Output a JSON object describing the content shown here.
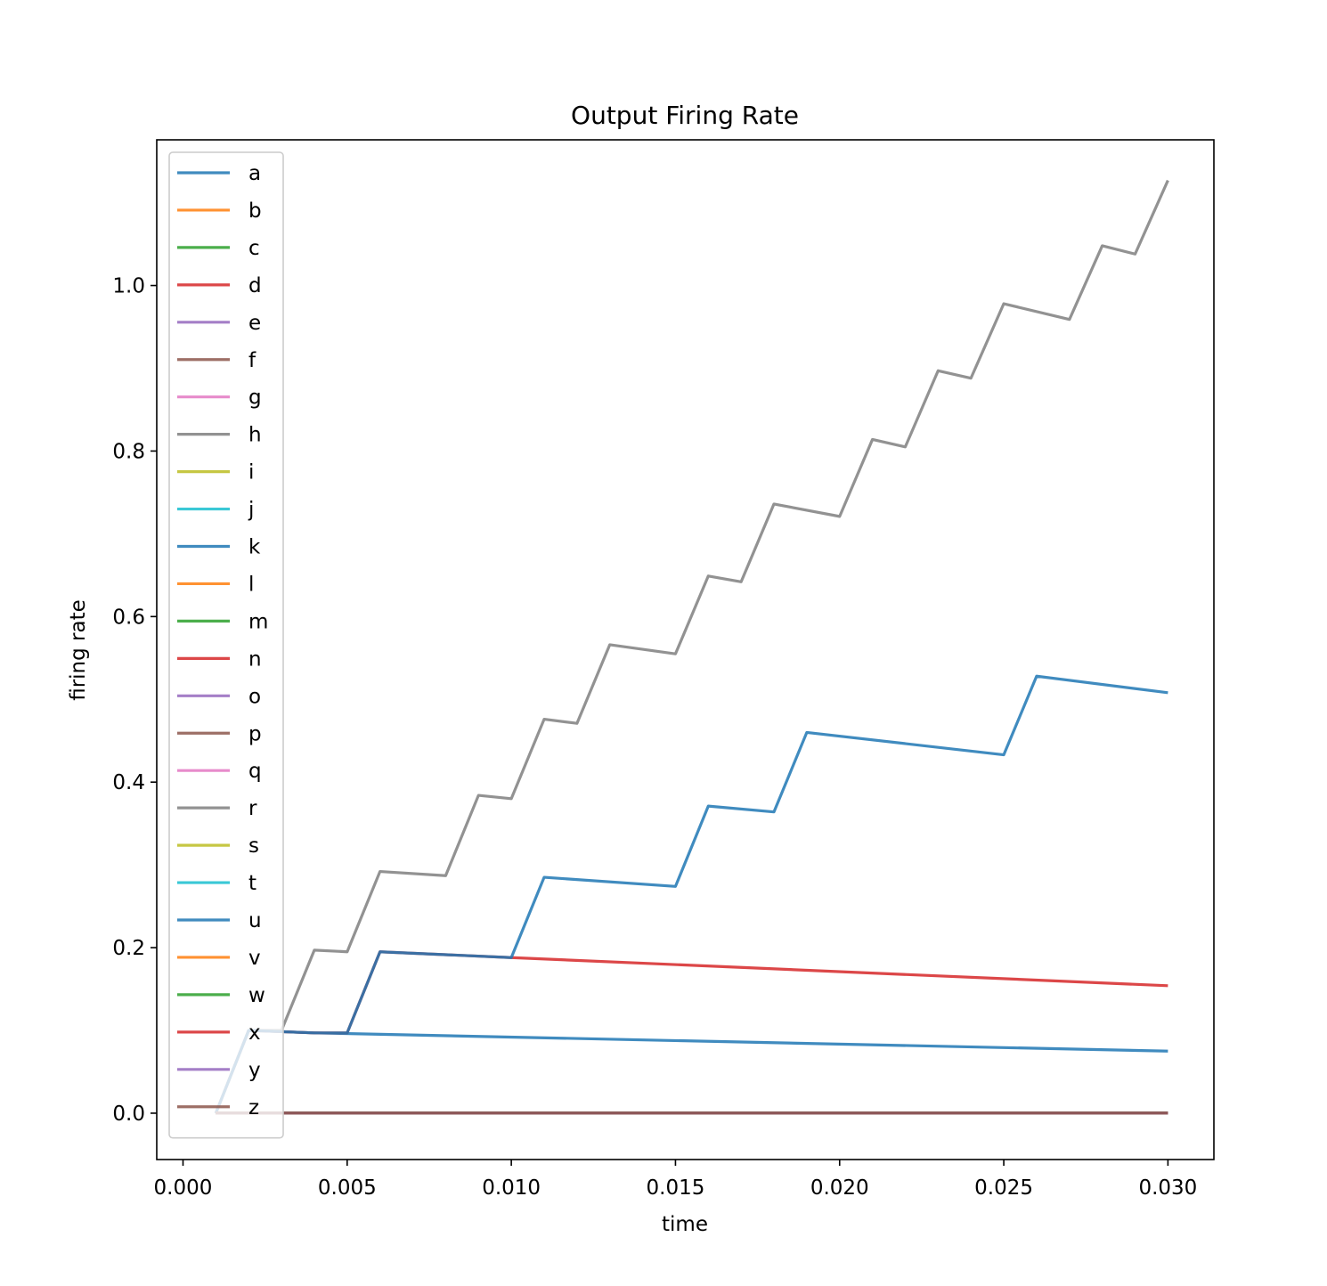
{
  "chart_data": {
    "type": "line",
    "title": "Output Firing Rate",
    "xlabel": "time",
    "ylabel": "firing rate",
    "xlim": [
      -0.0008,
      0.0314
    ],
    "ylim": [
      -0.056,
      1.176
    ],
    "xticks": [
      0.0,
      0.005,
      0.01,
      0.015,
      0.02,
      0.025,
      0.03
    ],
    "xtick_labels": [
      "0.000",
      "0.005",
      "0.010",
      "0.015",
      "0.020",
      "0.025",
      "0.030"
    ],
    "yticks": [
      0.0,
      0.2,
      0.4,
      0.6,
      0.8,
      1.0
    ],
    "ytick_labels": [
      "0.0",
      "0.2",
      "0.4",
      "0.6",
      "0.8",
      "1.0"
    ],
    "grid": false,
    "legend_position": "upper-left",
    "series": [
      {
        "name": "a",
        "color": "#1f77b4",
        "x": [
          0.001,
          0.002,
          0.004,
          0.03
        ],
        "y": [
          0.0,
          0.1,
          0.097,
          0.075
        ]
      },
      {
        "name": "b",
        "color": "#ff7f0e",
        "x": [
          0.001,
          0.03
        ],
        "y": [
          0.0,
          0.0
        ]
      },
      {
        "name": "c",
        "color": "#2ca02c",
        "x": [
          0.001,
          0.03
        ],
        "y": [
          0.0,
          0.0
        ]
      },
      {
        "name": "d",
        "color": "#d62728",
        "x": [
          0.001,
          0.002,
          0.004,
          0.005,
          0.006,
          0.01,
          0.03
        ],
        "y": [
          0.0,
          0.1,
          0.097,
          0.097,
          0.195,
          0.188,
          0.154
        ]
      },
      {
        "name": "e",
        "color": "#9467bd",
        "x": [
          0.001,
          0.03
        ],
        "y": [
          0.0,
          0.0
        ]
      },
      {
        "name": "f",
        "color": "#8c564b",
        "x": [
          0.001,
          0.03
        ],
        "y": [
          0.0,
          0.0
        ]
      },
      {
        "name": "g",
        "color": "#e377c2",
        "x": [
          0.001,
          0.03
        ],
        "y": [
          0.0,
          0.0
        ]
      },
      {
        "name": "h",
        "color": "#7f7f7f",
        "x": [
          0.001,
          0.002,
          0.003,
          0.004,
          0.005,
          0.006,
          0.008,
          0.009,
          0.01,
          0.011,
          0.012,
          0.013,
          0.015,
          0.016,
          0.017,
          0.018,
          0.02,
          0.021,
          0.022,
          0.023,
          0.024,
          0.025,
          0.027,
          0.028,
          0.029,
          0.03
        ],
        "y": [
          0.0,
          0.1,
          0.1,
          0.197,
          0.195,
          0.292,
          0.287,
          0.384,
          0.38,
          0.476,
          0.471,
          0.566,
          0.555,
          0.649,
          0.642,
          0.736,
          0.721,
          0.814,
          0.805,
          0.897,
          0.888,
          0.978,
          0.959,
          1.048,
          1.038,
          1.127
        ]
      },
      {
        "name": "i",
        "color": "#bcbd22",
        "x": [
          0.001,
          0.03
        ],
        "y": [
          0.0,
          0.0
        ]
      },
      {
        "name": "j",
        "color": "#17becf",
        "x": [
          0.001,
          0.03
        ],
        "y": [
          0.0,
          0.0
        ]
      },
      {
        "name": "k",
        "color": "#1f77b4",
        "x": [
          0.001,
          0.002,
          0.004,
          0.005,
          0.006,
          0.01,
          0.011,
          0.015,
          0.016,
          0.018,
          0.019,
          0.025,
          0.026,
          0.03
        ],
        "y": [
          0.0,
          0.1,
          0.097,
          0.097,
          0.195,
          0.188,
          0.285,
          0.274,
          0.371,
          0.364,
          0.46,
          0.433,
          0.528,
          0.508
        ]
      },
      {
        "name": "l",
        "color": "#ff7f0e",
        "x": [
          0.001,
          0.03
        ],
        "y": [
          0.0,
          0.0
        ]
      },
      {
        "name": "m",
        "color": "#2ca02c",
        "x": [
          0.001,
          0.03
        ],
        "y": [
          0.0,
          0.0
        ]
      },
      {
        "name": "n",
        "color": "#d62728",
        "x": [
          0.001,
          0.03
        ],
        "y": [
          0.0,
          0.0
        ]
      },
      {
        "name": "o",
        "color": "#9467bd",
        "x": [
          0.001,
          0.03
        ],
        "y": [
          0.0,
          0.0
        ]
      },
      {
        "name": "p",
        "color": "#8c564b",
        "x": [
          0.001,
          0.03
        ],
        "y": [
          0.0,
          0.0
        ]
      },
      {
        "name": "q",
        "color": "#e377c2",
        "x": [
          0.001,
          0.03
        ],
        "y": [
          0.0,
          0.0
        ]
      },
      {
        "name": "r",
        "color": "#7f7f7f",
        "x": [
          0.001,
          0.03
        ],
        "y": [
          0.0,
          0.0
        ]
      },
      {
        "name": "s",
        "color": "#bcbd22",
        "x": [
          0.001,
          0.03
        ],
        "y": [
          0.0,
          0.0
        ]
      },
      {
        "name": "t",
        "color": "#17becf",
        "x": [
          0.001,
          0.03
        ],
        "y": [
          0.0,
          0.0
        ]
      },
      {
        "name": "u",
        "color": "#1f77b4",
        "x": [
          0.001,
          0.03
        ],
        "y": [
          0.0,
          0.0
        ]
      },
      {
        "name": "v",
        "color": "#ff7f0e",
        "x": [
          0.001,
          0.03
        ],
        "y": [
          0.0,
          0.0
        ]
      },
      {
        "name": "w",
        "color": "#2ca02c",
        "x": [
          0.001,
          0.03
        ],
        "y": [
          0.0,
          0.0
        ]
      },
      {
        "name": "x",
        "color": "#d62728",
        "x": [
          0.001,
          0.03
        ],
        "y": [
          0.0,
          0.0
        ]
      },
      {
        "name": "y",
        "color": "#9467bd",
        "x": [
          0.001,
          0.03
        ],
        "y": [
          0.0,
          0.0
        ]
      },
      {
        "name": "z",
        "color": "#8c564b",
        "x": [
          0.001,
          0.03
        ],
        "y": [
          0.0,
          0.0
        ]
      }
    ]
  }
}
